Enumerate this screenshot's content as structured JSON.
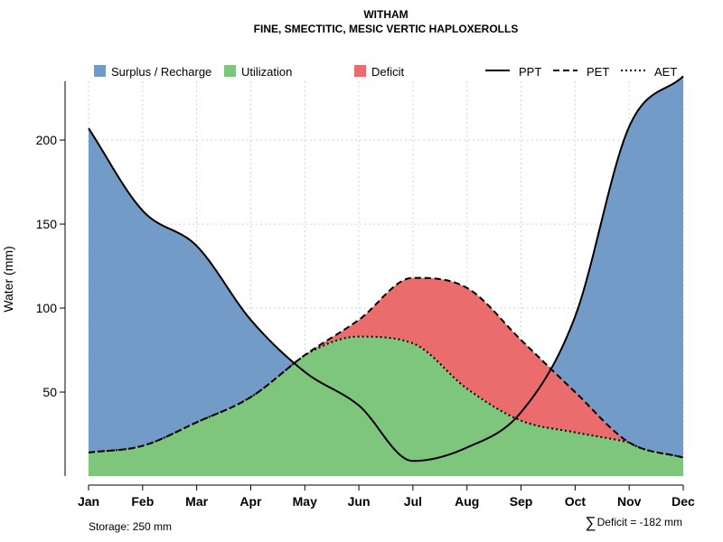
{
  "chart_data": {
    "type": "area",
    "title": "WITHAM",
    "subtitle": "FINE, SMECTITIC, MESIC VERTIC HAPLOXEROLLS",
    "xlabel": "",
    "ylabel": "Water (mm)",
    "ylim": [
      0,
      235
    ],
    "yticks": [
      50,
      100,
      150,
      200
    ],
    "grid": true,
    "legend_position": "top",
    "categories": [
      "Jan",
      "Feb",
      "Mar",
      "Apr",
      "May",
      "Jun",
      "Jul",
      "Aug",
      "Sep",
      "Oct",
      "Nov",
      "Dec"
    ],
    "series": [
      {
        "name": "PPT",
        "style": "solid",
        "values": [
          207,
          158,
          137,
          93,
          62,
          42,
          9,
          17,
          38,
          95,
          208,
          238
        ]
      },
      {
        "name": "PET",
        "style": "dashed",
        "values": [
          14,
          18,
          32,
          47,
          72,
          93,
          118,
          112,
          81,
          50,
          20,
          11
        ]
      },
      {
        "name": "AET",
        "style": "dotted",
        "values": [
          14,
          18,
          32,
          47,
          72,
          83,
          79,
          52,
          33,
          26,
          20,
          11
        ]
      }
    ],
    "areas": [
      {
        "name": "Surplus / Recharge",
        "color": "#729BC8"
      },
      {
        "name": "Utilization",
        "color": "#7EC67B"
      },
      {
        "name": "Deficit",
        "color": "#EB6C6C"
      }
    ],
    "annotations": {
      "storage": "Storage: 250 mm",
      "deficit_symbol": "∑",
      "deficit": "Deficit = -182 mm"
    }
  }
}
